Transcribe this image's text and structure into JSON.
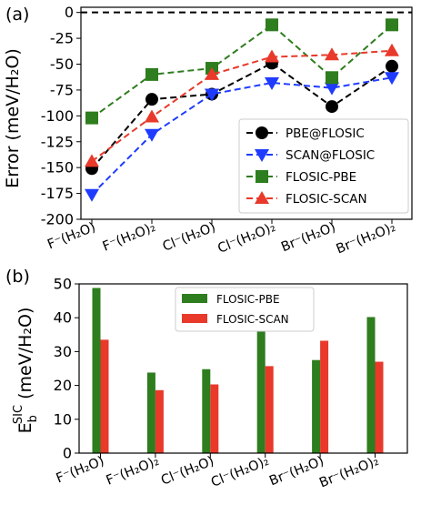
{
  "chart_data": [
    {
      "type": "line",
      "panel_label": "(a)",
      "ylabel": "Error (meV/H₂O)",
      "ylim": [
        -200,
        5
      ],
      "yticks": [
        0,
        -25,
        -50,
        -75,
        -100,
        -125,
        -150,
        -175,
        -200
      ],
      "categories": [
        "F⁻(H₂O)",
        "F⁻(H₂O)₂",
        "Cl⁻(H₂O)",
        "Cl⁻(H₂O)₂",
        "Br⁻(H₂O)",
        "Br⁻(H₂O)₂"
      ],
      "reference_line": {
        "y": 0,
        "style": "dashed",
        "color": "#000000"
      },
      "legend_position": "lower-right",
      "series": [
        {
          "name": "PBE@FLOSIC",
          "marker": "circle",
          "color": "#000000",
          "values": [
            -151,
            -84,
            -79,
            -49,
            -91,
            -52
          ]
        },
        {
          "name": "SCAN@FLOSIC",
          "marker": "triangle-down",
          "color": "#1f3bff",
          "values": [
            -176,
            -118,
            -79,
            -68,
            -73,
            -63
          ]
        },
        {
          "name": "FLOSIC-PBE",
          "marker": "square",
          "color": "#2e7d1e",
          "values": [
            -102,
            -60,
            -54,
            -12,
            -63,
            -12
          ]
        },
        {
          "name": "FLOSIC-SCAN",
          "marker": "triangle-up",
          "color": "#e8392b",
          "values": [
            -144,
            -101,
            -60,
            -43,
            -41,
            -37
          ]
        }
      ]
    },
    {
      "type": "bar",
      "panel_label": "(b)",
      "ylabel_main": "E",
      "ylabel_sub": "b",
      "ylabel_sup": "SIC",
      "ylabel_rest": " (meV/H₂O)",
      "ylim": [
        0,
        50
      ],
      "yticks": [
        0,
        10,
        20,
        30,
        40,
        50
      ],
      "categories": [
        "F⁻(H₂O)",
        "F⁻(H₂O)₂",
        "Cl⁻(H₂O)",
        "Cl⁻(H₂O)₂",
        "Br⁻(H₂O)",
        "Br⁻(H₂O)₂"
      ],
      "legend_position": "upper-center",
      "series": [
        {
          "name": "FLOSIC-PBE",
          "color": "#2e7d1e",
          "values": [
            48.8,
            23.8,
            24.8,
            37.0,
            27.5,
            40.2
          ]
        },
        {
          "name": "FLOSIC-SCAN",
          "color": "#e8392b",
          "values": [
            33.5,
            18.6,
            20.3,
            25.7,
            33.2,
            27.0
          ]
        }
      ]
    }
  ]
}
